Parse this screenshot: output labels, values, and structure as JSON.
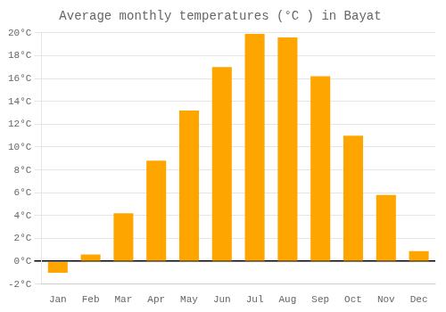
{
  "chart_data": {
    "type": "bar",
    "title": "Average monthly temperatures (°C ) in Bayat",
    "categories": [
      "Jan",
      "Feb",
      "Mar",
      "Apr",
      "May",
      "Jun",
      "Jul",
      "Aug",
      "Sep",
      "Oct",
      "Nov",
      "Dec"
    ],
    "values": [
      -1.0,
      0.6,
      4.2,
      8.8,
      13.2,
      17.0,
      19.9,
      19.6,
      16.2,
      11.0,
      5.8,
      0.9
    ],
    "color": "#FFA500",
    "ylim": [
      -2,
      20
    ],
    "yticks": [
      {
        "value": -2,
        "label": "-2°C"
      },
      {
        "value": 0,
        "label": "0°C"
      },
      {
        "value": 2,
        "label": "2°C"
      },
      {
        "value": 4,
        "label": "4°C"
      },
      {
        "value": 6,
        "label": "6°C"
      },
      {
        "value": 8,
        "label": "8°C"
      },
      {
        "value": 10,
        "label": "10°C"
      },
      {
        "value": 12,
        "label": "12°C"
      },
      {
        "value": 14,
        "label": "14°C"
      },
      {
        "value": 16,
        "label": "16°C"
      },
      {
        "value": 18,
        "label": "18°C"
      },
      {
        "value": 20,
        "label": "20°C"
      }
    ],
    "grid": true
  }
}
